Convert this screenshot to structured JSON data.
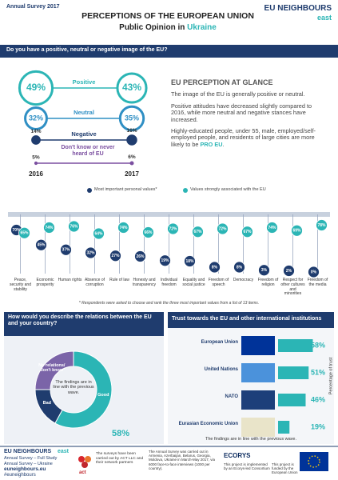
{
  "header": {
    "survey": "Annual Survey 2017",
    "title": "PERCEPTIONS OF THE EUROPEAN UNION",
    "subtitle": "Public Opinion in",
    "country": "Ukraine",
    "logo": "EU NEIGHBOURS",
    "logo_sub": "east"
  },
  "image": {
    "question": "Do you have a positive, neutral or negative image of the EU?",
    "years": [
      "2016",
      "2017"
    ],
    "series": [
      {
        "name": "Positive",
        "color": "#2bb5b5",
        "values": [
          49,
          43
        ],
        "value_labels": [
          "49%",
          "43%"
        ]
      },
      {
        "name": "Neutral",
        "color": "#2f8fc4",
        "values": [
          32,
          35
        ],
        "value_labels": [
          "32%",
          "35%"
        ]
      },
      {
        "name": "Negative",
        "color": "#1f3c6e",
        "values": [
          14,
          16
        ],
        "value_labels": [
          "14%",
          "16%"
        ]
      },
      {
        "name": "Don't know or never heard of EU",
        "color": "#7b4fa0",
        "values": [
          5,
          6
        ],
        "value_labels": [
          "5%",
          "6%"
        ]
      }
    ]
  },
  "glance": {
    "title": "EU PERCEPTION AT GLANCE",
    "paragraphs": [
      "The image of the EU is generally positive or neutral.",
      "Positive attitudes have decreased slightly compared to 2016, while more neutral and negative stances have increased."
    ],
    "highlight_intro": "Highly-educated people, under 55, male, employed/self-employed people, and residents of large cities are more likely to be",
    "highlight": "PRO EU",
    "highlight_end": "."
  },
  "values": {
    "categories": [
      "Peace, security and stability",
      "Economic prosperity",
      "Human rights",
      "Absence of corruption",
      "Rule of law",
      "Honesty and transparency",
      "Individual freedom",
      "Equality and social justice",
      "Freedom of speech",
      "Democracy",
      "Freedom of religion",
      "Respect for other cultures and minorities",
      "Freedom of the media"
    ],
    "series": [
      {
        "name": "Most important personal values*",
        "color": "#1f3c6e",
        "values": [
          70,
          45,
          37,
          32,
          27,
          26,
          19,
          18,
          8,
          8,
          3,
          2,
          0
        ],
        "value_labels": [
          "70%",
          "45%",
          "37%",
          "32%",
          "27%",
          "26%",
          "19%",
          "18%",
          "8%",
          "8%",
          "3%",
          "2%",
          "0%"
        ]
      },
      {
        "name": "Values strongly associated with the EU",
        "color": "#2bb5b5",
        "values": [
          65,
          74,
          76,
          64,
          74,
          66,
          72,
          67,
          72,
          67,
          74,
          69,
          78
        ],
        "value_labels": [
          "65%",
          "74%",
          "76%",
          "64%",
          "74%",
          "66%",
          "72%",
          "67%",
          "72%",
          "67%",
          "74%",
          "69%",
          "78%"
        ]
      }
    ],
    "footnote": "* Respondents were asked to choose and rank the three most important values from a list of 13 items."
  },
  "relations": {
    "question": "How would you describe the relations between the EU and your country?",
    "segments": [
      {
        "name": "Good",
        "value": 58,
        "value_label": "58%",
        "color": "#2bb5b5"
      },
      {
        "name": "Bad",
        "value": 17,
        "color": "#1f3c6e"
      },
      {
        "name": "No relations/ don't know",
        "value": 25,
        "color": "#7b64a8"
      }
    ],
    "note": "The findings are in line with the previous wave."
  },
  "trust": {
    "title": "Trust towards the EU and other international institutions",
    "color": "#2bb5b5",
    "items": [
      {
        "name": "European Union",
        "value": 58,
        "value_label": "58%"
      },
      {
        "name": "United Nations",
        "value": 51,
        "value_label": "51%"
      },
      {
        "name": "NATO",
        "value": 46,
        "value_label": "46%"
      },
      {
        "name": "Eurasian Economic Union",
        "value": 19,
        "value_label": "19%"
      }
    ],
    "axis_label": "Percentage of trust",
    "note": "The findings are in line with the previous wave."
  },
  "footer": {
    "logo": "EU NEIGHBOURS",
    "logo_sub": "east",
    "links": [
      "Annual Survey – Full Study",
      "Annual Survey – Ukraine"
    ],
    "site": "euneighbours.eu",
    "hashtag": "#euneighbours",
    "act_text": "The surveys have been carried out by ACT LLC and their network partners",
    "act": "act",
    "method": "The Annual Survey was carried out in Armenia, Azerbaijan, Belarus, Georgia, Moldova, Ukraine in March-May 2017, via 6000 face-to-face interviews (1000 per country).",
    "ecorys": "ECORYS",
    "ecorys_text": "This project is implemented by an Ecorys-led Consortium",
    "funded": "This project is funded by the European Union"
  }
}
